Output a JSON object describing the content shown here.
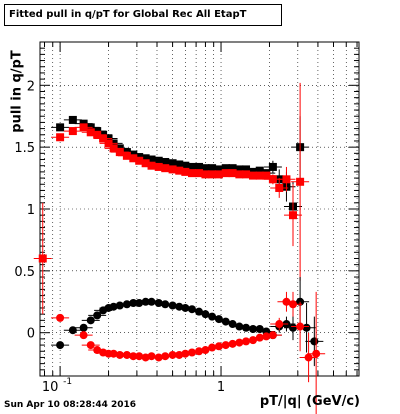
{
  "chart_data": {
    "type": "scatter",
    "title": "Fitted pull in q/pT for Global Rec All EtapT",
    "xlabel": "pT/|q| (GeV/c)",
    "ylabel": "pull in q/pT",
    "footer": "Sun Apr 10 08:28:44 2016",
    "xscale": "log",
    "xlim": [
      0.075,
      7.2
    ],
    "ylim": [
      -0.35,
      2.35
    ],
    "grid": true,
    "x_tick_labels": [
      "10",
      "1"
    ],
    "y_tick_labels": [
      "0",
      "0.5",
      "1",
      "1.5",
      "2"
    ],
    "series": [
      {
        "color": "#000000",
        "marker": "square",
        "points": [
          [
            0.1,
            1.66
          ],
          [
            0.12,
            1.72
          ],
          [
            0.14,
            1.69
          ],
          [
            0.155,
            1.66
          ],
          [
            0.17,
            1.63
          ],
          [
            0.185,
            1.6
          ],
          [
            0.2,
            1.57
          ],
          [
            0.215,
            1.53
          ],
          [
            0.235,
            1.49
          ],
          [
            0.26,
            1.46
          ],
          [
            0.285,
            1.44
          ],
          [
            0.31,
            1.42
          ],
          [
            0.34,
            1.41
          ],
          [
            0.37,
            1.4
          ],
          [
            0.41,
            1.39
          ],
          [
            0.45,
            1.38
          ],
          [
            0.5,
            1.37
          ],
          [
            0.55,
            1.36
          ],
          [
            0.6,
            1.35
          ],
          [
            0.66,
            1.34
          ],
          [
            0.73,
            1.34
          ],
          [
            0.8,
            1.33
          ],
          [
            0.88,
            1.33
          ],
          [
            0.97,
            1.32
          ],
          [
            1.07,
            1.33
          ],
          [
            1.18,
            1.33
          ],
          [
            1.3,
            1.32
          ],
          [
            1.43,
            1.32
          ],
          [
            1.58,
            1.3
          ],
          [
            1.74,
            1.31
          ],
          [
            1.91,
            1.29
          ],
          [
            2.1,
            1.34
          ],
          [
            2.3,
            1.24
          ],
          [
            2.55,
            1.18
          ],
          [
            2.8,
            1.02
          ],
          [
            3.1,
            1.5
          ]
        ],
        "yerr": [
          0,
          0,
          0,
          0,
          0,
          0,
          0,
          0,
          0,
          0,
          0,
          0,
          0,
          0,
          0,
          0,
          0,
          0,
          0,
          0,
          0,
          0,
          0,
          0,
          0,
          0,
          0,
          0,
          0,
          0,
          0,
          0.05,
          0.08,
          0.12,
          0.2,
          0.25
        ]
      },
      {
        "color": "#ff0000",
        "marker": "square",
        "points": [
          [
            0.078,
            0.6
          ],
          [
            0.1,
            1.58
          ],
          [
            0.12,
            1.63
          ],
          [
            0.14,
            1.66
          ],
          [
            0.155,
            1.62
          ],
          [
            0.17,
            1.6
          ],
          [
            0.185,
            1.57
          ],
          [
            0.2,
            1.53
          ],
          [
            0.215,
            1.49
          ],
          [
            0.235,
            1.46
          ],
          [
            0.26,
            1.43
          ],
          [
            0.285,
            1.41
          ],
          [
            0.31,
            1.39
          ],
          [
            0.34,
            1.37
          ],
          [
            0.37,
            1.35
          ],
          [
            0.41,
            1.34
          ],
          [
            0.45,
            1.33
          ],
          [
            0.5,
            1.32
          ],
          [
            0.55,
            1.31
          ],
          [
            0.6,
            1.3
          ],
          [
            0.66,
            1.29
          ],
          [
            0.73,
            1.29
          ],
          [
            0.8,
            1.28
          ],
          [
            0.88,
            1.28
          ],
          [
            0.97,
            1.28
          ],
          [
            1.07,
            1.29
          ],
          [
            1.18,
            1.29
          ],
          [
            1.3,
            1.28
          ],
          [
            1.43,
            1.28
          ],
          [
            1.58,
            1.27
          ],
          [
            1.74,
            1.27
          ],
          [
            1.91,
            1.27
          ],
          [
            2.1,
            1.24
          ],
          [
            2.3,
            1.17
          ],
          [
            2.55,
            1.24
          ],
          [
            2.8,
            0.95
          ],
          [
            3.1,
            1.22
          ]
        ],
        "yerr": [
          0.45,
          0,
          0,
          0,
          0,
          0,
          0,
          0,
          0,
          0,
          0,
          0,
          0,
          0,
          0,
          0,
          0,
          0,
          0,
          0,
          0,
          0,
          0,
          0,
          0,
          0,
          0,
          0,
          0,
          0,
          0,
          0,
          0.04,
          0.08,
          0.1,
          0.25,
          0.8
        ]
      },
      {
        "color": "#000000",
        "marker": "circle",
        "points": [
          [
            0.1,
            -0.1
          ],
          [
            0.12,
            0.02
          ],
          [
            0.14,
            0.04
          ],
          [
            0.155,
            0.1
          ],
          [
            0.17,
            0.14
          ],
          [
            0.185,
            0.18
          ],
          [
            0.2,
            0.2
          ],
          [
            0.215,
            0.21
          ],
          [
            0.235,
            0.22
          ],
          [
            0.26,
            0.23
          ],
          [
            0.285,
            0.24
          ],
          [
            0.31,
            0.24
          ],
          [
            0.34,
            0.25
          ],
          [
            0.37,
            0.25
          ],
          [
            0.41,
            0.24
          ],
          [
            0.45,
            0.23
          ],
          [
            0.5,
            0.22
          ],
          [
            0.55,
            0.21
          ],
          [
            0.6,
            0.2
          ],
          [
            0.66,
            0.19
          ],
          [
            0.73,
            0.17
          ],
          [
            0.8,
            0.15
          ],
          [
            0.88,
            0.13
          ],
          [
            0.97,
            0.11
          ],
          [
            1.07,
            0.09
          ],
          [
            1.18,
            0.07
          ],
          [
            1.3,
            0.05
          ],
          [
            1.43,
            0.04
          ],
          [
            1.58,
            0.03
          ],
          [
            1.74,
            0.03
          ],
          [
            1.91,
            0.01
          ],
          [
            2.1,
            -0.02
          ],
          [
            2.3,
            0.05
          ],
          [
            2.55,
            0.07
          ],
          [
            2.8,
            0.04
          ],
          [
            3.1,
            0.25
          ],
          [
            3.4,
            0.04
          ],
          [
            3.8,
            -0.07
          ]
        ],
        "yerr": [
          0,
          0,
          0,
          0,
          0,
          0,
          0,
          0,
          0,
          0,
          0,
          0,
          0,
          0,
          0,
          0,
          0,
          0,
          0,
          0,
          0,
          0,
          0,
          0,
          0,
          0,
          0,
          0,
          0,
          0,
          0,
          0.03,
          0.05,
          0.06,
          0.1,
          0.2,
          0.2,
          0.2
        ]
      },
      {
        "color": "#ff0000",
        "marker": "circle",
        "points": [
          [
            0.1,
            0.12
          ],
          [
            0.14,
            -0.02
          ],
          [
            0.155,
            -0.1
          ],
          [
            0.17,
            -0.14
          ],
          [
            0.185,
            -0.16
          ],
          [
            0.2,
            -0.17
          ],
          [
            0.215,
            -0.17
          ],
          [
            0.235,
            -0.18
          ],
          [
            0.26,
            -0.18
          ],
          [
            0.285,
            -0.19
          ],
          [
            0.31,
            -0.19
          ],
          [
            0.34,
            -0.2
          ],
          [
            0.37,
            -0.19
          ],
          [
            0.41,
            -0.2
          ],
          [
            0.45,
            -0.19
          ],
          [
            0.5,
            -0.18
          ],
          [
            0.55,
            -0.18
          ],
          [
            0.6,
            -0.17
          ],
          [
            0.66,
            -0.16
          ],
          [
            0.73,
            -0.15
          ],
          [
            0.8,
            -0.14
          ],
          [
            0.88,
            -0.12
          ],
          [
            0.97,
            -0.11
          ],
          [
            1.07,
            -0.1
          ],
          [
            1.18,
            -0.09
          ],
          [
            1.3,
            -0.08
          ],
          [
            1.43,
            -0.07
          ],
          [
            1.58,
            -0.06
          ],
          [
            1.74,
            -0.04
          ],
          [
            1.91,
            -0.03
          ],
          [
            2.1,
            -0.02
          ],
          [
            2.3,
            0.07
          ],
          [
            2.55,
            0.25
          ],
          [
            2.8,
            0.23
          ],
          [
            3.1,
            0.05
          ],
          [
            3.5,
            -0.2
          ],
          [
            3.9,
            -0.17
          ]
        ],
        "yerr": [
          0,
          0,
          0,
          0,
          0,
          0,
          0,
          0,
          0,
          0,
          0,
          0,
          0,
          0,
          0,
          0,
          0,
          0,
          0,
          0,
          0,
          0,
          0,
          0,
          0,
          0,
          0,
          0,
          0,
          0,
          0,
          0.05,
          0.08,
          0.1,
          0.2,
          0.2,
          0.5
        ]
      }
    ]
  }
}
